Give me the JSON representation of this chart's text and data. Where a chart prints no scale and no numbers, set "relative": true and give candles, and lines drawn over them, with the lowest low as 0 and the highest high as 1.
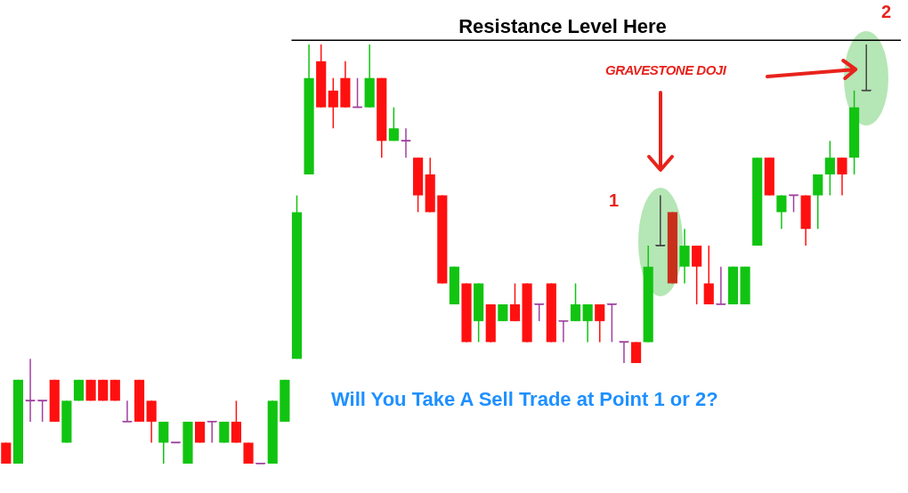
{
  "chart_data": {
    "type": "candlestick",
    "relative": true,
    "categories": [
      null,
      null,
      null,
      null,
      null,
      null,
      null,
      null,
      null,
      null,
      null,
      null,
      null,
      null,
      null,
      null,
      null,
      null,
      null,
      null,
      null,
      null,
      null,
      null,
      null,
      null,
      null,
      null,
      null,
      null,
      null,
      null,
      null,
      null,
      null,
      null,
      null,
      null,
      null,
      null,
      null,
      null,
      null,
      null,
      null,
      null,
      null,
      null,
      null,
      null,
      null,
      null,
      null,
      null,
      null,
      null,
      null,
      null,
      null,
      null,
      null,
      null,
      null,
      null,
      null,
      null,
      null,
      null,
      null,
      null,
      null,
      null
    ],
    "ohlc": [
      [
        0.05,
        0.05,
        0,
        0
      ],
      [
        0,
        0.2,
        0,
        0.2
      ],
      [
        0.15,
        0.25,
        0.1,
        0.15
      ],
      [
        0.15,
        0.15,
        0.1,
        0.15
      ],
      [
        0.2,
        0.2,
        0.1,
        0.1
      ],
      [
        0.05,
        0.15,
        0.05,
        0.15
      ],
      [
        0.15,
        0.2,
        0.15,
        0.2
      ],
      [
        0.2,
        0.2,
        0.15,
        0.15
      ],
      [
        0.2,
        0.2,
        0.15,
        0.15
      ],
      [
        0.2,
        0.2,
        0.15,
        0.15
      ],
      [
        0.1,
        0.15,
        0.1,
        0.1
      ],
      [
        0.2,
        0.2,
        0.1,
        0.1
      ],
      [
        0.15,
        0.15,
        0.05,
        0.1
      ],
      [
        0.05,
        0.1,
        0,
        0.1
      ],
      [
        0.05,
        0.05,
        0.05,
        0.05
      ],
      [
        0,
        0.1,
        0,
        0.1
      ],
      [
        0.1,
        0.1,
        0.05,
        0.05
      ],
      [
        0.1,
        0.1,
        0.05,
        0.1
      ],
      [
        0.05,
        0.1,
        0.05,
        0.1
      ],
      [
        0.1,
        0.15,
        0.05,
        0.05
      ],
      [
        0.05,
        0.05,
        0,
        0
      ],
      [
        0,
        0,
        0,
        0
      ],
      [
        0,
        0.15,
        0,
        0.15
      ],
      [
        0.1,
        0.2,
        0.1,
        0.2
      ],
      [
        0.25,
        0.64,
        0.25,
        0.6
      ],
      [
        0.69,
        1,
        0.69,
        0.92
      ],
      [
        0.96,
        1,
        0.85,
        0.85
      ],
      [
        0.89,
        0.92,
        0.8,
        0.85
      ],
      [
        0.92,
        0.96,
        0.85,
        0.85
      ],
      [
        0.85,
        0.92,
        0.85,
        0.85
      ],
      [
        0.85,
        1,
        0.85,
        0.92
      ],
      [
        0.92,
        0.92,
        0.73,
        0.77
      ],
      [
        0.77,
        0.85,
        0.77,
        0.8
      ],
      [
        0.77,
        0.8,
        0.73,
        0.77
      ],
      [
        0.73,
        0.73,
        0.6,
        0.64
      ],
      [
        0.69,
        0.73,
        0.6,
        0.6
      ],
      [
        0.64,
        0.64,
        0.43,
        0.43
      ],
      [
        0.38,
        0.47,
        0.38,
        0.47
      ],
      [
        0.43,
        0.43,
        0.29,
        0.29
      ],
      [
        0.34,
        0.43,
        0.29,
        0.43
      ],
      [
        0.38,
        0.38,
        0.29,
        0.29
      ],
      [
        0.34,
        0.38,
        0.34,
        0.38
      ],
      [
        0.38,
        0.43,
        0.34,
        0.34
      ],
      [
        0.43,
        0.43,
        0.29,
        0.29
      ],
      [
        0.38,
        0.38,
        0.34,
        0.38
      ],
      [
        0.43,
        0.43,
        0.29,
        0.29
      ],
      [
        0.34,
        0.34,
        0.29,
        0.34
      ],
      [
        0.34,
        0.43,
        0.34,
        0.38
      ],
      [
        0.34,
        0.38,
        0.29,
        0.38
      ],
      [
        0.38,
        0.38,
        0.29,
        0.34
      ],
      [
        0.38,
        0.38,
        0.29,
        0.38
      ],
      [
        0.29,
        0.29,
        0.24,
        0.29
      ],
      [
        0.29,
        0.29,
        0.24,
        0.24
      ],
      [
        0.29,
        0.52,
        0.29,
        0.47
      ],
      [
        0.52,
        0.64,
        0.52,
        0.52
      ],
      [
        0.6,
        0.6,
        0.43,
        0.43
      ],
      [
        0.47,
        0.56,
        0.43,
        0.52
      ],
      [
        0.52,
        0.52,
        0.38,
        0.47
      ],
      [
        0.43,
        0.52,
        0.38,
        0.38
      ],
      [
        0.38,
        0.47,
        0.38,
        0.38
      ],
      [
        0.38,
        0.47,
        0.38,
        0.47
      ],
      [
        0.38,
        0.47,
        0.38,
        0.47
      ],
      [
        0.52,
        0.73,
        0.52,
        0.73
      ],
      [
        0.73,
        0.73,
        0.64,
        0.64
      ],
      [
        0.6,
        0.64,
        0.56,
        0.64
      ],
      [
        0.64,
        0.64,
        0.6,
        0.64
      ],
      [
        0.64,
        0.64,
        0.52,
        0.56
      ],
      [
        0.64,
        0.69,
        0.56,
        0.69
      ],
      [
        0.69,
        0.77,
        0.64,
        0.73
      ],
      [
        0.73,
        0.73,
        0.64,
        0.69
      ],
      [
        0.73,
        0.89,
        0.69,
        0.85
      ],
      [
        0.89,
        1,
        0.89,
        0.89
      ]
    ],
    "colors": [
      "#ff1010",
      "#11c411",
      "#a040a0",
      "#a040a0",
      "#ff1010",
      "#11c411",
      "#11c411",
      "#ff1010",
      "#ff1010",
      "#ff1010",
      "#a040a0",
      "#ff1010",
      "#ff1010",
      "#11c411",
      "#a040a0",
      "#11c411",
      "#ff1010",
      "#a040a0",
      "#11c411",
      "#ff1010",
      "#ff1010",
      "#a040a0",
      "#11c411",
      "#11c411",
      "#11c411",
      "#11c411",
      "#ff1010",
      "#ff1010",
      "#ff1010",
      "#a040a0",
      "#11c411",
      "#ff1010",
      "#11c411",
      "#a040a0",
      "#ff1010",
      "#ff1010",
      "#ff1010",
      "#11c411",
      "#ff1010",
      "#11c411",
      "#ff1010",
      "#11c411",
      "#ff1010",
      "#ff1010",
      "#a040a0",
      "#ff1010",
      "#a040a0",
      "#11c411",
      "#11c411",
      "#ff1010",
      "#a040a0",
      "#a040a0",
      "#ff1010",
      "#11c411",
      "#444444",
      "#c8301c",
      "#11c411",
      "#ff1010",
      "#ff1010",
      "#a040a0",
      "#11c411",
      "#11c411",
      "#11c411",
      "#ff1010",
      "#11c411",
      "#a040a0",
      "#ff1010",
      "#11c411",
      "#11c411",
      "#ff1010",
      "#11c411",
      "#444444"
    ],
    "ref_lines": [
      {
        "axis": "y",
        "value": 1.01,
        "label": "Resistance Level Here",
        "color": "#000000"
      }
    ],
    "annotations": [
      "GRAVESTONE DOJI",
      "1",
      "2",
      "Will You Take A Sell Trade at Point 1 or 2?"
    ]
  }
}
